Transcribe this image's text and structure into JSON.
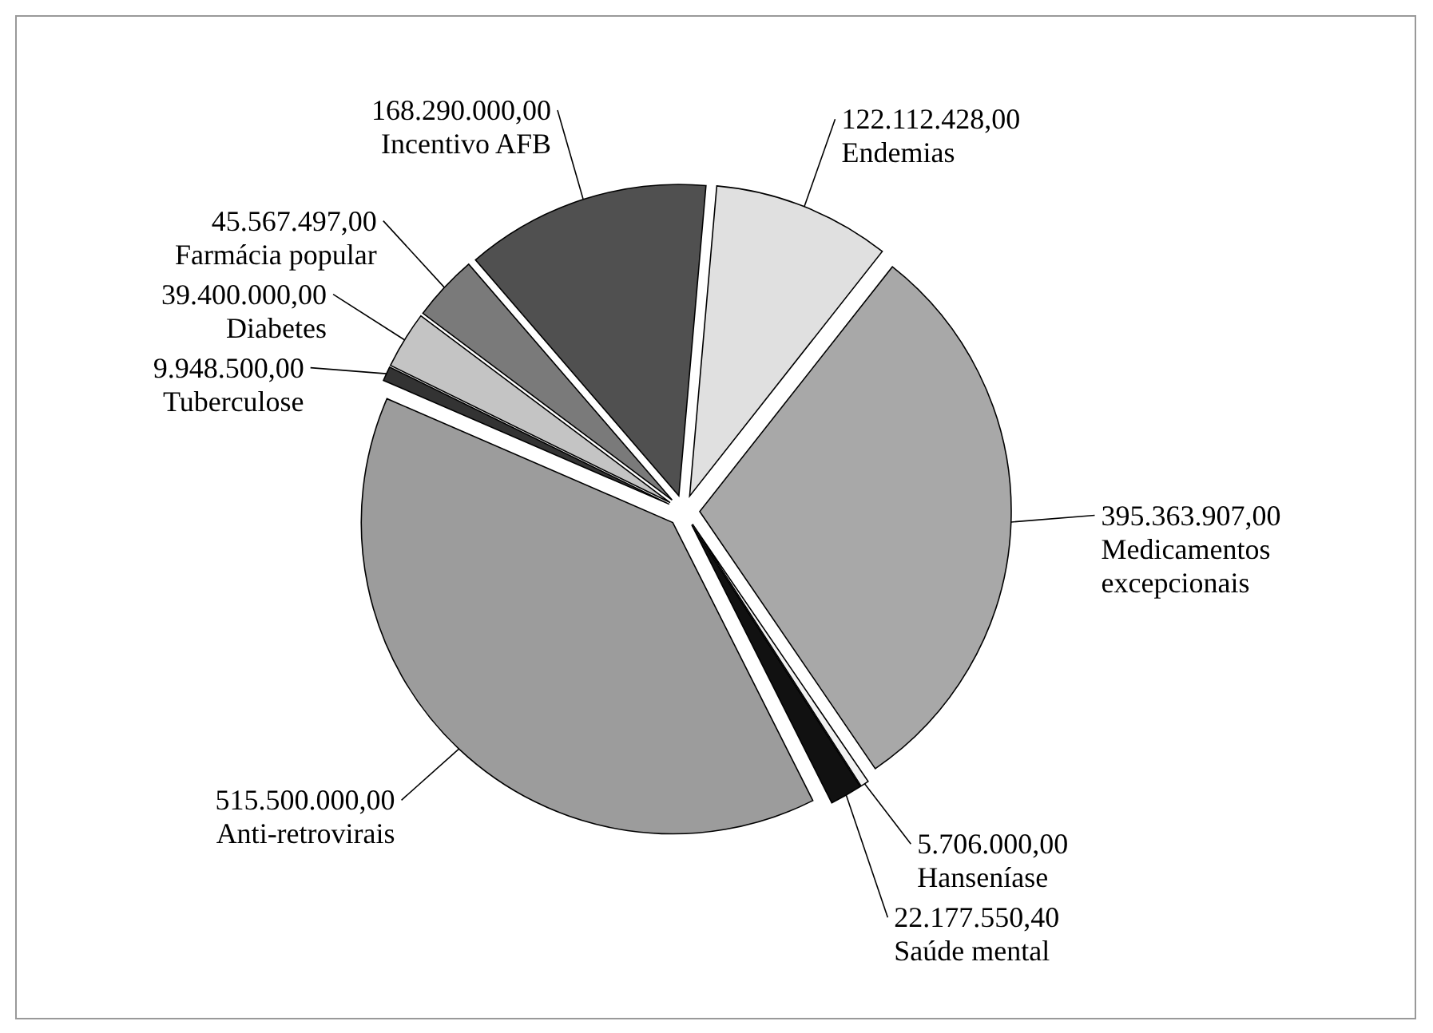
{
  "chart_data": {
    "type": "pie",
    "categories": [
      "Endemias",
      "Medicamentos excepcionais",
      "Hanseníase",
      "Saúde mental",
      "Anti-retrovirais",
      "Tuberculose",
      "Diabetes",
      "Farmácia popular",
      "Incentivo AFB"
    ],
    "values": [
      122112428,
      395363907,
      5706000,
      22177550.4,
      515500000,
      9948500,
      39400000,
      45567497,
      168290000
    ],
    "value_labels": [
      "122.112.428,00",
      "395.363.907,00",
      "5.706.000,00",
      "22.177.550,40",
      "515.500.000,00",
      "9.948.500,00",
      "39.400.000,00",
      "45.567.497,00",
      "168.290.000,00"
    ],
    "colors": [
      "#e0e0e0",
      "#a8a8a8",
      "#f2f2f2",
      "#111111",
      "#9c9c9c",
      "#333333",
      "#c4c4c4",
      "#7a7a7a",
      "#505050"
    ]
  }
}
